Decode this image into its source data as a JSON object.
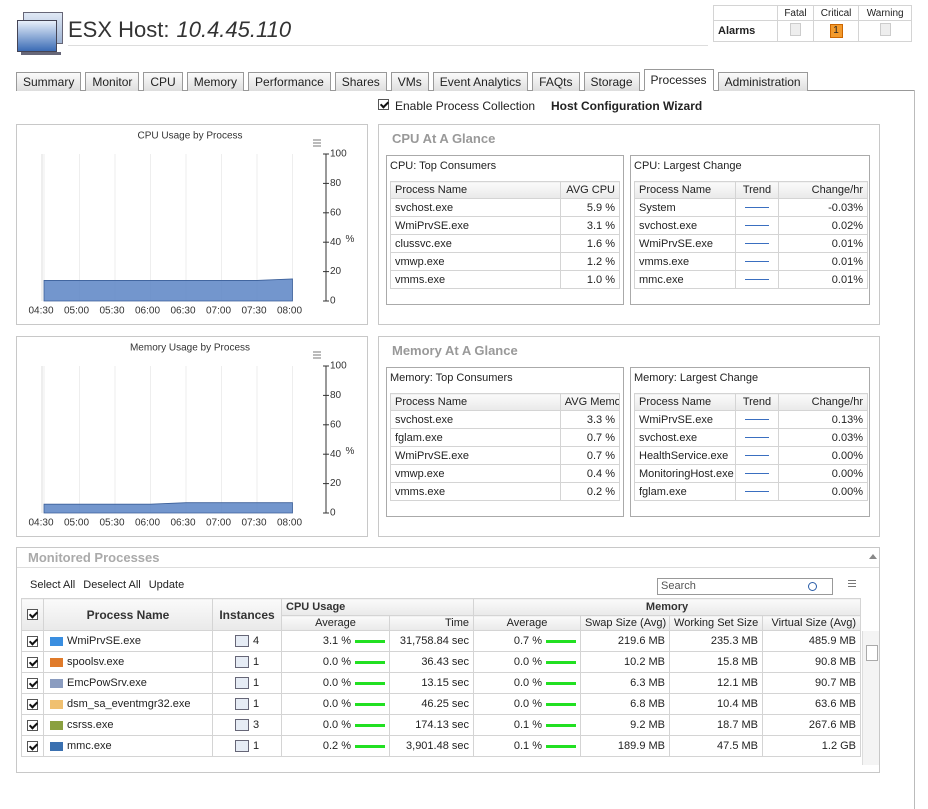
{
  "header": {
    "title": "ESX Host:",
    "host": "10.4.45.110"
  },
  "alarms": {
    "label": "Alarms",
    "columns": [
      "Fatal",
      "Critical",
      "Warning"
    ],
    "critical_count": "1"
  },
  "tabs": [
    "Summary",
    "Monitor",
    "CPU",
    "Memory",
    "Performance",
    "Shares",
    "VMs",
    "Event Analytics",
    "FAQts",
    "Storage",
    "Processes",
    "Administration"
  ],
  "active_tab_index": 10,
  "options": {
    "enable_collection": "Enable Process Collection",
    "wizard": "Host Configuration Wizard"
  },
  "cpu_chart": {
    "type": "area",
    "title": "CPU Usage by Process",
    "x": [
      "04:30",
      "05:00",
      "05:30",
      "06:00",
      "06:30",
      "07:00",
      "07:30",
      "08:00"
    ],
    "values": [
      14,
      14,
      14,
      14,
      14,
      14,
      14,
      15
    ],
    "ylim": [
      0,
      100
    ],
    "yticks": [
      0,
      20,
      40,
      60,
      80,
      100
    ],
    "y_unit": "%",
    "color": "#5b84c4"
  },
  "memory_chart": {
    "type": "area",
    "title": "Memory Usage by Process",
    "x": [
      "04:30",
      "05:00",
      "05:30",
      "06:00",
      "06:30",
      "07:00",
      "07:30",
      "08:00"
    ],
    "values": [
      6,
      6,
      6,
      6,
      7,
      7,
      7,
      7
    ],
    "ylim": [
      0,
      100
    ],
    "yticks": [
      0,
      20,
      40,
      60,
      80,
      100
    ],
    "y_unit": "%",
    "color": "#5b84c4"
  },
  "cpu_glance": {
    "title": "CPU At A Glance",
    "top": {
      "title": "CPU: Top Consumers",
      "columns": [
        "Process Name",
        "AVG CPU"
      ],
      "rows": [
        [
          "svchost.exe",
          "5.9 %"
        ],
        [
          "WmiPrvSE.exe",
          "3.1 %"
        ],
        [
          "clussvc.exe",
          "1.6 %"
        ],
        [
          "vmwp.exe",
          "1.2 %"
        ],
        [
          "vmms.exe",
          "1.0 %"
        ]
      ]
    },
    "change": {
      "title": "CPU: Largest Change",
      "columns": [
        "Process Name",
        "Trend",
        "Change/hr"
      ],
      "rows": [
        [
          "System",
          "-0.03%"
        ],
        [
          "svchost.exe",
          "0.02%"
        ],
        [
          "WmiPrvSE.exe",
          "0.01%"
        ],
        [
          "vmms.exe",
          "0.01%"
        ],
        [
          "mmc.exe",
          "0.01%"
        ]
      ]
    }
  },
  "memory_glance": {
    "title": "Memory At A Glance",
    "top": {
      "title": "Memory: Top Consumers",
      "columns": [
        "Process Name",
        "AVG Memory"
      ],
      "rows": [
        [
          "svchost.exe",
          "3.3 %"
        ],
        [
          "fglam.exe",
          "0.7 %"
        ],
        [
          "WmiPrvSE.exe",
          "0.7 %"
        ],
        [
          "vmwp.exe",
          "0.4 %"
        ],
        [
          "vmms.exe",
          "0.2 %"
        ]
      ]
    },
    "change": {
      "title": "Memory: Largest Change",
      "columns": [
        "Process Name",
        "Trend",
        "Change/hr"
      ],
      "rows": [
        [
          "WmiPrvSE.exe",
          "0.13%"
        ],
        [
          "svchost.exe",
          "0.03%"
        ],
        [
          "HealthService.exe",
          "0.00%"
        ],
        [
          "MonitoringHost.exe",
          "0.00%"
        ],
        [
          "fglam.exe",
          "0.00%"
        ]
      ]
    }
  },
  "monitored": {
    "title": "Monitored Processes",
    "toolbar": [
      "Select All",
      "Deselect All",
      "Update"
    ],
    "search_placeholder": "Search",
    "name_header": "Process Name",
    "instances_header": "Instances",
    "groups": [
      "CPU Usage",
      "Memory"
    ],
    "columns": [
      "Average",
      "Time",
      "Average",
      "Swap Size (Avg)",
      "Working Set Size",
      "Virtual Size (Avg)"
    ],
    "rows": [
      {
        "name": "WmiPrvSE.exe",
        "color": "#3a8ee0",
        "instances": 4,
        "cpu_avg": "3.1 %",
        "cpu_time": "31,758.84 sec",
        "mem_avg": "0.7 %",
        "swap": "219.6 MB",
        "working_set": "235.3 MB",
        "virtual": "485.9 MB"
      },
      {
        "name": "spoolsv.exe",
        "color": "#e07b2a",
        "instances": 1,
        "cpu_avg": "0.0 %",
        "cpu_time": "36.43 sec",
        "mem_avg": "0.0 %",
        "swap": "10.2 MB",
        "working_set": "15.8 MB",
        "virtual": "90.8 MB"
      },
      {
        "name": "EmcPowSrv.exe",
        "color": "#8a9cc0",
        "instances": 1,
        "cpu_avg": "0.0 %",
        "cpu_time": "13.15 sec",
        "mem_avg": "0.0 %",
        "swap": "6.3 MB",
        "working_set": "12.1 MB",
        "virtual": "90.7 MB"
      },
      {
        "name": "dsm_sa_eventmgr32.exe",
        "color": "#f0c070",
        "instances": 1,
        "cpu_avg": "0.0 %",
        "cpu_time": "46.25 sec",
        "mem_avg": "0.0 %",
        "swap": "6.8 MB",
        "working_set": "10.4 MB",
        "virtual": "63.6 MB"
      },
      {
        "name": "csrss.exe",
        "color": "#8aa040",
        "instances": 3,
        "cpu_avg": "0.0 %",
        "cpu_time": "174.13 sec",
        "mem_avg": "0.1 %",
        "swap": "9.2 MB",
        "working_set": "18.7 MB",
        "virtual": "267.6 MB"
      },
      {
        "name": "mmc.exe",
        "color": "#3a70b0",
        "instances": 1,
        "cpu_avg": "0.2 %",
        "cpu_time": "3,901.48 sec",
        "mem_avg": "0.1 %",
        "swap": "189.9 MB",
        "working_set": "47.5 MB",
        "virtual": "1.2 GB"
      }
    ]
  }
}
